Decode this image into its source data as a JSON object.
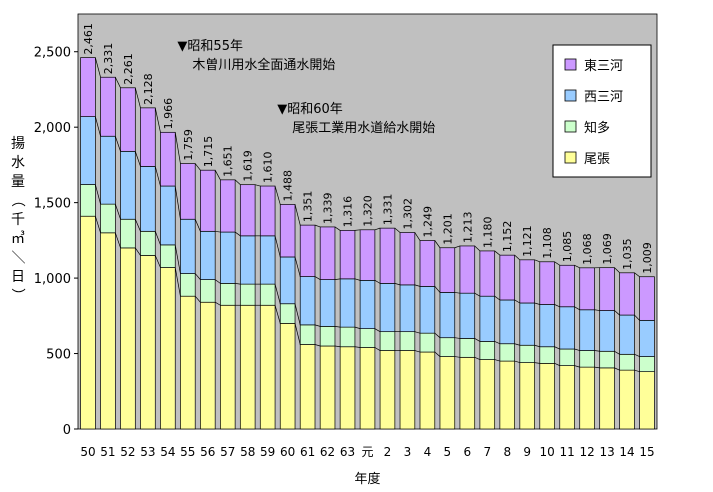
{
  "chart_data": {
    "type": "bar",
    "stacked": true,
    "categories": [
      "50",
      "51",
      "52",
      "53",
      "54",
      "55",
      "56",
      "57",
      "58",
      "59",
      "60",
      "61",
      "62",
      "63",
      "元",
      "2",
      "3",
      "4",
      "5",
      "6",
      "7",
      "8",
      "9",
      "10",
      "11",
      "12",
      "13",
      "14",
      "15"
    ],
    "series": [
      {
        "name": "尾張",
        "color": "#ffff99",
        "values": [
          1410,
          1300,
          1200,
          1150,
          1070,
          880,
          840,
          820,
          820,
          820,
          700,
          560,
          550,
          545,
          540,
          520,
          520,
          510,
          480,
          475,
          460,
          450,
          440,
          435,
          420,
          410,
          405,
          390,
          380
        ]
      },
      {
        "name": "知多",
        "color": "#ccffcc",
        "values": [
          210,
          190,
          190,
          160,
          150,
          150,
          150,
          145,
          140,
          140,
          130,
          130,
          130,
          130,
          125,
          125,
          125,
          125,
          125,
          125,
          120,
          115,
          115,
          110,
          110,
          110,
          110,
          105,
          100
        ]
      },
      {
        "name": "西三河",
        "color": "#99ccff",
        "values": [
          450,
          450,
          450,
          430,
          390,
          360,
          320,
          340,
          320,
          320,
          310,
          320,
          310,
          320,
          320,
          320,
          310,
          310,
          300,
          300,
          300,
          290,
          280,
          280,
          280,
          270,
          270,
          260,
          240
        ]
      },
      {
        "name": "東三河",
        "color": "#cc99ff",
        "values": [
          391,
          391,
          421,
          388,
          356,
          369,
          405,
          346,
          339,
          330,
          348,
          341,
          349,
          321,
          335,
          366,
          347,
          304,
          296,
          313,
          300,
          297,
          286,
          283,
          275,
          278,
          284,
          280,
          289
        ]
      }
    ],
    "totals": [
      "2,461",
      "2,331",
      "2,261",
      "2,128",
      "1,966",
      "1,759",
      "1,715",
      "1,651",
      "1,619",
      "1,610",
      "1,488",
      "1,351",
      "1,339",
      "1,316",
      "1,320",
      "1,331",
      "1,302",
      "1,249",
      "1,201",
      "1,213",
      "1,180",
      "1,152",
      "1,121",
      "1,108",
      "1,085",
      "1,068",
      "1,069",
      "1,035",
      "1,009"
    ],
    "ylim": [
      0,
      2750
    ],
    "yticks": [
      0,
      500,
      1000,
      1500,
      2000,
      2500
    ],
    "ytick_labels": [
      "0",
      "500",
      "1,000",
      "1,500",
      "2,000",
      "2,500"
    ],
    "ylabel": "揚水量（千㎥／日）",
    "xlabel": "年度",
    "legend_position": "top-right",
    "legend_order": [
      "東三河",
      "西三河",
      "知多",
      "尾張"
    ],
    "annotations": [
      {
        "text": "▼昭和55年",
        "line2": "木曽川用水全面通水開始"
      },
      {
        "text": "▼昭和60年",
        "line2": "尾張工業用水道給水開始"
      }
    ]
  }
}
